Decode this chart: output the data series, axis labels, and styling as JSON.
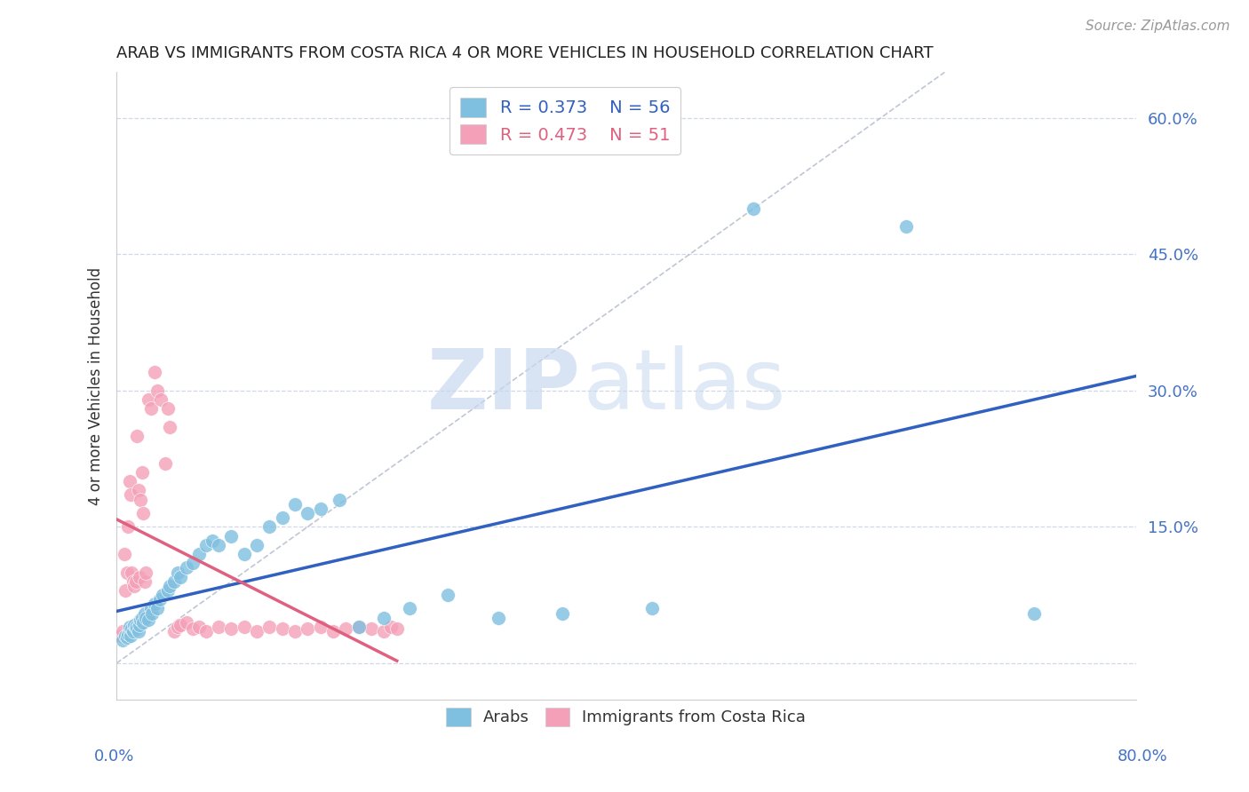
{
  "title": "ARAB VS IMMIGRANTS FROM COSTA RICA 4 OR MORE VEHICLES IN HOUSEHOLD CORRELATION CHART",
  "source": "Source: ZipAtlas.com",
  "ylabel": "4 or more Vehicles in Household",
  "yticks": [
    0.0,
    0.15,
    0.3,
    0.45,
    0.6
  ],
  "ytick_labels": [
    "",
    "15.0%",
    "30.0%",
    "45.0%",
    "60.0%"
  ],
  "xmin": 0.0,
  "xmax": 0.8,
  "ymin": -0.04,
  "ymax": 0.65,
  "legend_r1": "R = 0.373",
  "legend_n1": "N = 56",
  "legend_r2": "R = 0.473",
  "legend_n2": "N = 51",
  "color_arab": "#7fbfdf",
  "color_immigrant": "#f4a0b8",
  "color_arab_line": "#3060c0",
  "color_immigrant_line": "#e06080",
  "arab_x": [
    0.005,
    0.007,
    0.008,
    0.009,
    0.01,
    0.01,
    0.011,
    0.012,
    0.013,
    0.014,
    0.015,
    0.016,
    0.017,
    0.018,
    0.019,
    0.02,
    0.021,
    0.022,
    0.023,
    0.025,
    0.027,
    0.028,
    0.03,
    0.032,
    0.034,
    0.036,
    0.04,
    0.042,
    0.045,
    0.048,
    0.05,
    0.055,
    0.06,
    0.065,
    0.07,
    0.075,
    0.08,
    0.09,
    0.1,
    0.11,
    0.12,
    0.13,
    0.14,
    0.15,
    0.16,
    0.175,
    0.19,
    0.21,
    0.23,
    0.26,
    0.3,
    0.35,
    0.42,
    0.5,
    0.62,
    0.72
  ],
  "arab_y": [
    0.025,
    0.03,
    0.028,
    0.032,
    0.035,
    0.04,
    0.03,
    0.038,
    0.035,
    0.042,
    0.04,
    0.038,
    0.035,
    0.042,
    0.048,
    0.05,
    0.045,
    0.055,
    0.05,
    0.048,
    0.06,
    0.055,
    0.065,
    0.06,
    0.07,
    0.075,
    0.08,
    0.085,
    0.09,
    0.1,
    0.095,
    0.105,
    0.11,
    0.12,
    0.13,
    0.135,
    0.13,
    0.14,
    0.12,
    0.13,
    0.15,
    0.16,
    0.175,
    0.165,
    0.17,
    0.18,
    0.04,
    0.05,
    0.06,
    0.075,
    0.05,
    0.055,
    0.06,
    0.5,
    0.48,
    0.055
  ],
  "imm_x": [
    0.003,
    0.005,
    0.006,
    0.007,
    0.008,
    0.009,
    0.01,
    0.011,
    0.012,
    0.013,
    0.014,
    0.015,
    0.016,
    0.017,
    0.018,
    0.019,
    0.02,
    0.021,
    0.022,
    0.023,
    0.025,
    0.027,
    0.03,
    0.032,
    0.035,
    0.038,
    0.04,
    0.042,
    0.045,
    0.048,
    0.05,
    0.055,
    0.06,
    0.065,
    0.07,
    0.08,
    0.09,
    0.1,
    0.11,
    0.12,
    0.13,
    0.14,
    0.15,
    0.16,
    0.17,
    0.18,
    0.19,
    0.2,
    0.21,
    0.215,
    0.22
  ],
  "imm_y": [
    0.03,
    0.035,
    0.12,
    0.08,
    0.1,
    0.15,
    0.2,
    0.185,
    0.1,
    0.09,
    0.085,
    0.09,
    0.25,
    0.19,
    0.095,
    0.18,
    0.21,
    0.165,
    0.09,
    0.1,
    0.29,
    0.28,
    0.32,
    0.3,
    0.29,
    0.22,
    0.28,
    0.26,
    0.035,
    0.04,
    0.042,
    0.045,
    0.038,
    0.04,
    0.035,
    0.04,
    0.038,
    0.04,
    0.035,
    0.04,
    0.038,
    0.035,
    0.038,
    0.04,
    0.035,
    0.038,
    0.04,
    0.038,
    0.035,
    0.04,
    0.038
  ]
}
